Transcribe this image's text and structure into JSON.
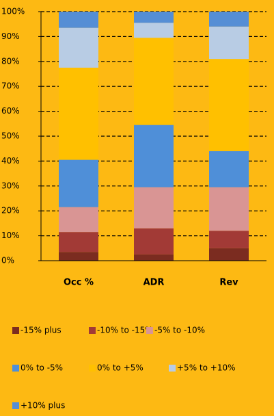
{
  "chart_data": {
    "type": "stacked_bar_100",
    "categories": [
      "Occ %",
      "ADR",
      "Rev"
    ],
    "series": [
      {
        "name": "-15% plus",
        "color": "#7B2C20",
        "values": [
          3.5,
          2.5,
          5
        ]
      },
      {
        "name": "-10% to -15%",
        "color": "#A23A36",
        "values": [
          8,
          10.5,
          7
        ]
      },
      {
        "name": "-5% to -10%",
        "color": "#D99594",
        "values": [
          10,
          16.5,
          17.5
        ]
      },
      {
        "name": "0% to -5%",
        "color": "#4F8FD8",
        "values": [
          19,
          25,
          14.5
        ]
      },
      {
        "name": "0% to +5%",
        "color": "#FFC000",
        "values": [
          37,
          35,
          37
        ]
      },
      {
        "name": "+5% to +10%",
        "color": "#B8CCE4",
        "values": [
          16,
          6,
          13
        ]
      },
      {
        "name": "+10% plus",
        "color": "#558ED5",
        "values": [
          6.5,
          4.5,
          6
        ]
      }
    ],
    "ylim": [
      0,
      100
    ],
    "yticks": [
      {
        "value": 0,
        "label": "0%"
      },
      {
        "value": 10,
        "label": "10%"
      },
      {
        "value": 20,
        "label": "20%"
      },
      {
        "value": 30,
        "label": "30%"
      },
      {
        "value": 40,
        "label": "40%"
      },
      {
        "value": 50,
        "label": "50%"
      },
      {
        "value": 60,
        "label": "60%"
      },
      {
        "value": 70,
        "label": "70%"
      },
      {
        "value": 80,
        "label": "80%"
      },
      {
        "value": 90,
        "label": "90%"
      },
      {
        "value": 100,
        "label": "100%"
      }
    ],
    "grid": true
  }
}
